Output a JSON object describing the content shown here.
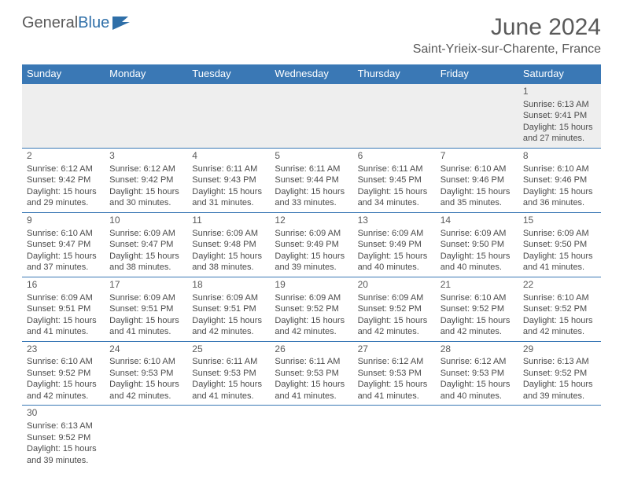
{
  "logo": {
    "general": "General",
    "blue": "Blue"
  },
  "title": {
    "month": "June 2024",
    "location": "Saint-Yrieix-sur-Charente, France"
  },
  "colors": {
    "header_bg": "#3a78b5",
    "header_text": "#ffffff",
    "text": "#4a4a4a",
    "muted": "#5a5a5a",
    "row_sep": "#3a78b5",
    "week1_bg": "#eeeeee",
    "page_bg": "#ffffff",
    "logo_general": "#5a5a5a",
    "logo_blue": "#2f6fa8"
  },
  "weekdays": [
    "Sunday",
    "Monday",
    "Tuesday",
    "Wednesday",
    "Thursday",
    "Friday",
    "Saturday"
  ],
  "weeks": [
    [
      null,
      null,
      null,
      null,
      null,
      null,
      {
        "n": "1",
        "sr": "Sunrise: 6:13 AM",
        "ss": "Sunset: 9:41 PM",
        "d1": "Daylight: 15 hours",
        "d2": "and 27 minutes."
      }
    ],
    [
      {
        "n": "2",
        "sr": "Sunrise: 6:12 AM",
        "ss": "Sunset: 9:42 PM",
        "d1": "Daylight: 15 hours",
        "d2": "and 29 minutes."
      },
      {
        "n": "3",
        "sr": "Sunrise: 6:12 AM",
        "ss": "Sunset: 9:42 PM",
        "d1": "Daylight: 15 hours",
        "d2": "and 30 minutes."
      },
      {
        "n": "4",
        "sr": "Sunrise: 6:11 AM",
        "ss": "Sunset: 9:43 PM",
        "d1": "Daylight: 15 hours",
        "d2": "and 31 minutes."
      },
      {
        "n": "5",
        "sr": "Sunrise: 6:11 AM",
        "ss": "Sunset: 9:44 PM",
        "d1": "Daylight: 15 hours",
        "d2": "and 33 minutes."
      },
      {
        "n": "6",
        "sr": "Sunrise: 6:11 AM",
        "ss": "Sunset: 9:45 PM",
        "d1": "Daylight: 15 hours",
        "d2": "and 34 minutes."
      },
      {
        "n": "7",
        "sr": "Sunrise: 6:10 AM",
        "ss": "Sunset: 9:46 PM",
        "d1": "Daylight: 15 hours",
        "d2": "and 35 minutes."
      },
      {
        "n": "8",
        "sr": "Sunrise: 6:10 AM",
        "ss": "Sunset: 9:46 PM",
        "d1": "Daylight: 15 hours",
        "d2": "and 36 minutes."
      }
    ],
    [
      {
        "n": "9",
        "sr": "Sunrise: 6:10 AM",
        "ss": "Sunset: 9:47 PM",
        "d1": "Daylight: 15 hours",
        "d2": "and 37 minutes."
      },
      {
        "n": "10",
        "sr": "Sunrise: 6:09 AM",
        "ss": "Sunset: 9:47 PM",
        "d1": "Daylight: 15 hours",
        "d2": "and 38 minutes."
      },
      {
        "n": "11",
        "sr": "Sunrise: 6:09 AM",
        "ss": "Sunset: 9:48 PM",
        "d1": "Daylight: 15 hours",
        "d2": "and 38 minutes."
      },
      {
        "n": "12",
        "sr": "Sunrise: 6:09 AM",
        "ss": "Sunset: 9:49 PM",
        "d1": "Daylight: 15 hours",
        "d2": "and 39 minutes."
      },
      {
        "n": "13",
        "sr": "Sunrise: 6:09 AM",
        "ss": "Sunset: 9:49 PM",
        "d1": "Daylight: 15 hours",
        "d2": "and 40 minutes."
      },
      {
        "n": "14",
        "sr": "Sunrise: 6:09 AM",
        "ss": "Sunset: 9:50 PM",
        "d1": "Daylight: 15 hours",
        "d2": "and 40 minutes."
      },
      {
        "n": "15",
        "sr": "Sunrise: 6:09 AM",
        "ss": "Sunset: 9:50 PM",
        "d1": "Daylight: 15 hours",
        "d2": "and 41 minutes."
      }
    ],
    [
      {
        "n": "16",
        "sr": "Sunrise: 6:09 AM",
        "ss": "Sunset: 9:51 PM",
        "d1": "Daylight: 15 hours",
        "d2": "and 41 minutes."
      },
      {
        "n": "17",
        "sr": "Sunrise: 6:09 AM",
        "ss": "Sunset: 9:51 PM",
        "d1": "Daylight: 15 hours",
        "d2": "and 41 minutes."
      },
      {
        "n": "18",
        "sr": "Sunrise: 6:09 AM",
        "ss": "Sunset: 9:51 PM",
        "d1": "Daylight: 15 hours",
        "d2": "and 42 minutes."
      },
      {
        "n": "19",
        "sr": "Sunrise: 6:09 AM",
        "ss": "Sunset: 9:52 PM",
        "d1": "Daylight: 15 hours",
        "d2": "and 42 minutes."
      },
      {
        "n": "20",
        "sr": "Sunrise: 6:09 AM",
        "ss": "Sunset: 9:52 PM",
        "d1": "Daylight: 15 hours",
        "d2": "and 42 minutes."
      },
      {
        "n": "21",
        "sr": "Sunrise: 6:10 AM",
        "ss": "Sunset: 9:52 PM",
        "d1": "Daylight: 15 hours",
        "d2": "and 42 minutes."
      },
      {
        "n": "22",
        "sr": "Sunrise: 6:10 AM",
        "ss": "Sunset: 9:52 PM",
        "d1": "Daylight: 15 hours",
        "d2": "and 42 minutes."
      }
    ],
    [
      {
        "n": "23",
        "sr": "Sunrise: 6:10 AM",
        "ss": "Sunset: 9:52 PM",
        "d1": "Daylight: 15 hours",
        "d2": "and 42 minutes."
      },
      {
        "n": "24",
        "sr": "Sunrise: 6:10 AM",
        "ss": "Sunset: 9:53 PM",
        "d1": "Daylight: 15 hours",
        "d2": "and 42 minutes."
      },
      {
        "n": "25",
        "sr": "Sunrise: 6:11 AM",
        "ss": "Sunset: 9:53 PM",
        "d1": "Daylight: 15 hours",
        "d2": "and 41 minutes."
      },
      {
        "n": "26",
        "sr": "Sunrise: 6:11 AM",
        "ss": "Sunset: 9:53 PM",
        "d1": "Daylight: 15 hours",
        "d2": "and 41 minutes."
      },
      {
        "n": "27",
        "sr": "Sunrise: 6:12 AM",
        "ss": "Sunset: 9:53 PM",
        "d1": "Daylight: 15 hours",
        "d2": "and 41 minutes."
      },
      {
        "n": "28",
        "sr": "Sunrise: 6:12 AM",
        "ss": "Sunset: 9:53 PM",
        "d1": "Daylight: 15 hours",
        "d2": "and 40 minutes."
      },
      {
        "n": "29",
        "sr": "Sunrise: 6:13 AM",
        "ss": "Sunset: 9:52 PM",
        "d1": "Daylight: 15 hours",
        "d2": "and 39 minutes."
      }
    ],
    [
      {
        "n": "30",
        "sr": "Sunrise: 6:13 AM",
        "ss": "Sunset: 9:52 PM",
        "d1": "Daylight: 15 hours",
        "d2": "and 39 minutes."
      },
      null,
      null,
      null,
      null,
      null,
      null
    ]
  ]
}
